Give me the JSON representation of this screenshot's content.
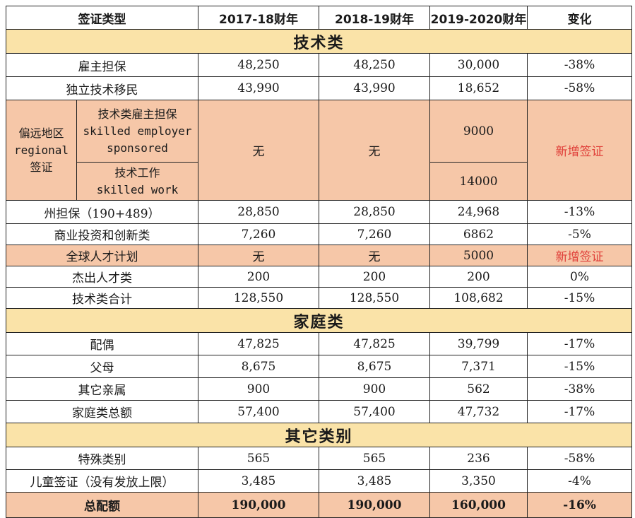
{
  "columns": [
    "签证类型",
    "2017-18财年",
    "2018-19财年",
    "2019-2020财年",
    "变化"
  ],
  "sections": {
    "skilled": "技术类",
    "family": "家庭类",
    "other": "其它类别"
  },
  "rows": {
    "employer": {
      "label": "雇主担保",
      "v1": "48,250",
      "v2": "48,250",
      "v3": "30,000",
      "chg": "-38%"
    },
    "independent": {
      "label": "独立技术移民",
      "v1": "43,990",
      "v2": "43,990",
      "v3": "18,652",
      "chg": "-58%"
    },
    "regional": {
      "group_label_1": "偏远地区",
      "group_label_2": "regional",
      "group_label_3": "签证",
      "sub1_line1": "技术类雇主担保",
      "sub1_line2": "skilled employer",
      "sub1_line3": "sponsored",
      "sub2_line1": "技术工作",
      "sub2_line2": "skilled work",
      "v1": "无",
      "v2": "无",
      "v3_sub1": "9000",
      "v3_sub2": "14000",
      "chg": "新增签证"
    },
    "state": {
      "label": "州担保（190+489）",
      "v1": "28,850",
      "v2": "28,850",
      "v3": "24,968",
      "chg": "-13%"
    },
    "business": {
      "label": "商业投资和创新类",
      "v1": "7,260",
      "v2": "7,260",
      "v3": "6862",
      "chg": "-5%"
    },
    "global": {
      "label": "全球人才计划",
      "v1": "无",
      "v2": "无",
      "v3": "5000",
      "chg": "新增签证"
    },
    "distinguished": {
      "label": "杰出人才类",
      "v1": "200",
      "v2": "200",
      "v3": "200",
      "chg": "0%"
    },
    "skilled_total": {
      "label": "技术类合计",
      "v1": "128,550",
      "v2": "128,550",
      "v3": "108,682",
      "chg": "-15%"
    },
    "partner": {
      "label": "配偶",
      "v1": "47,825",
      "v2": "47,825",
      "v3": "39,799",
      "chg": "-17%"
    },
    "parent": {
      "label": "父母",
      "v1": "8,675",
      "v2": "8,675",
      "v3": "7,371",
      "chg": "-15%"
    },
    "other_family": {
      "label": "其它亲属",
      "v1": "900",
      "v2": "900",
      "v3": "562",
      "chg": "-38%"
    },
    "family_total": {
      "label": "家庭类总额",
      "v1": "57,400",
      "v2": "57,400",
      "v3": "47,732",
      "chg": "-17%"
    },
    "special": {
      "label": "特殊类别",
      "v1": "565",
      "v2": "565",
      "v3": "236",
      "chg": "-58%"
    },
    "child": {
      "label": "儿童签证（没有发放上限）",
      "v1": "3,485",
      "v2": "3,485",
      "v3": "3,350",
      "chg": "-4%"
    },
    "grand_total": {
      "label": "总配额",
      "v1": "190,000",
      "v2": "190,000",
      "v3": "160,000",
      "chg": "-16%"
    }
  },
  "colors": {
    "section_bg": "#fae3a8",
    "highlight_bg": "#f6c7a8",
    "new_text": "#e0403a"
  }
}
